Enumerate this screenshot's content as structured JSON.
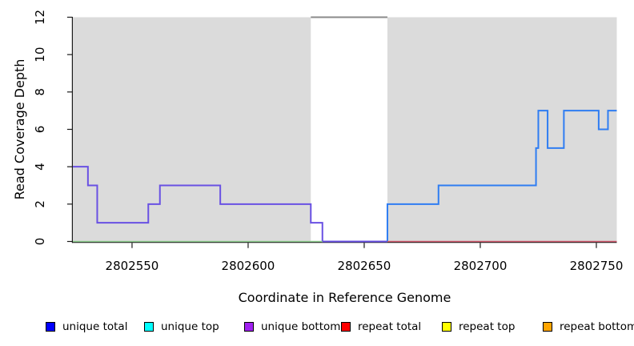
{
  "chart_data": {
    "type": "line",
    "variant": "step",
    "title": "",
    "xlabel": "Coordinate in Reference Genome",
    "ylabel": "Read Coverage Depth",
    "xlim": [
      2802524.5,
      2802758.8
    ],
    "ylim": [
      0,
      12
    ],
    "x_ticks": [
      2802550,
      2802600,
      2802650,
      2802700,
      2802750
    ],
    "y_ticks": [
      0,
      2,
      4,
      6,
      8,
      10,
      12
    ],
    "grid": false,
    "plot_bg_color": "#ffffff",
    "shaded_region_color": "#dbdbdb",
    "background_regions": [
      {
        "name": "shaded-region-left",
        "x0": 2802524.5,
        "x1": 2802627,
        "color": "#dbdbdb"
      },
      {
        "name": "shaded-region-right",
        "x0": 2802660,
        "x1": 2802758.8,
        "color": "#dbdbdb"
      }
    ],
    "gap_region": {
      "name": "unshaded-gap",
      "x0": 2802627,
      "x1": 2802660
    },
    "series": [
      {
        "name": "unique-coverage-left",
        "color": "#6951e3",
        "width": 2,
        "step": true,
        "points": [
          [
            2802524.5,
            4
          ],
          [
            2802531,
            3
          ],
          [
            2802535,
            1
          ],
          [
            2802557,
            2
          ],
          [
            2802562,
            3
          ],
          [
            2802588,
            2
          ],
          [
            2802627,
            1
          ],
          [
            2802632,
            0
          ],
          [
            2802660,
            0
          ]
        ]
      },
      {
        "name": "unique-coverage-right",
        "color": "#2f7df2",
        "width": 2,
        "step": true,
        "points": [
          [
            2802660,
            0
          ],
          [
            2802660,
            2
          ],
          [
            2802682,
            3
          ],
          [
            2802724,
            5
          ],
          [
            2802725,
            7
          ],
          [
            2802729,
            5
          ],
          [
            2802736,
            7
          ],
          [
            2802751,
            6
          ],
          [
            2802755,
            7
          ],
          [
            2802758.8,
            7
          ]
        ]
      },
      {
        "name": "baseline-left-green",
        "color": "#8fce8f",
        "width": 1.6,
        "step": false,
        "points": [
          [
            2802524.5,
            0
          ],
          [
            2802632,
            0
          ]
        ]
      },
      {
        "name": "baseline-right-red",
        "color": "#d15a6e",
        "width": 1.6,
        "step": false,
        "points": [
          [
            2802660,
            0
          ],
          [
            2802758.8,
            0
          ]
        ]
      },
      {
        "name": "offscale-top-gray",
        "color": "#8a8a8a",
        "width": 2,
        "step": false,
        "points": [
          [
            2802627,
            12
          ],
          [
            2802660,
            12
          ]
        ]
      }
    ]
  },
  "legend": {
    "items": [
      {
        "label": "unique total",
        "color": "#0000ff"
      },
      {
        "label": "unique top",
        "color": "#00ffff"
      },
      {
        "label": "unique bottom",
        "color": "#a020f0"
      },
      {
        "label": "repeat total",
        "color": "#ff0000"
      },
      {
        "label": "repeat top",
        "color": "#ffff00"
      },
      {
        "label": "repeat bottom",
        "color": "#ffa500"
      }
    ]
  }
}
